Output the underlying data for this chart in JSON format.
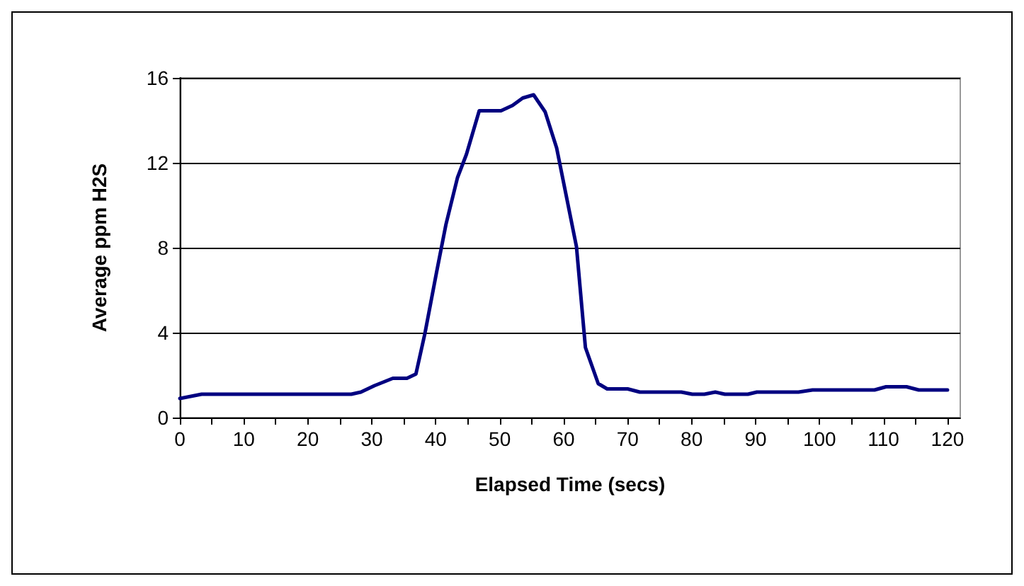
{
  "chart_data": {
    "type": "line",
    "xlabel": "Elapsed Time (secs)",
    "ylabel": "Average ppm H2S",
    "x": [
      0,
      3.4,
      26.8,
      28.3,
      30.4,
      33.3,
      35.5,
      36.9,
      38.3,
      40.1,
      41.6,
      43.4,
      44.8,
      46.8,
      50.2,
      52,
      53.6,
      55.3,
      57.1,
      58.9,
      60.3,
      62,
      63.4,
      65.4,
      66.8,
      70,
      71.9,
      78.4,
      80.1,
      82,
      83.7,
      85.2,
      88.8,
      90.2,
      96.7,
      98.9,
      108.6,
      110.4,
      113.6,
      115.5,
      120
    ],
    "series": [
      {
        "color": "#000080",
        "values": [
          0.9,
          1.1,
          1.1,
          1.2,
          1.5,
          1.85,
          1.85,
          2.05,
          3.95,
          6.8,
          9.1,
          11.3,
          12.4,
          14.45,
          14.45,
          14.7,
          15.05,
          15.2,
          14.4,
          12.7,
          10.6,
          8.05,
          3.3,
          1.6,
          1.35,
          1.35,
          1.2,
          1.2,
          1.1,
          1.1,
          1.2,
          1.1,
          1.1,
          1.2,
          1.2,
          1.3,
          1.3,
          1.45,
          1.45,
          1.3,
          1.3
        ]
      }
    ],
    "xlim": [
      0,
      122
    ],
    "xticks": [
      0,
      {
        "value": 5,
        "label": null
      },
      10,
      {
        "value": 15,
        "label": null
      },
      20,
      {
        "value": 25,
        "label": null
      },
      30,
      {
        "value": 35,
        "label": null
      },
      40,
      {
        "value": 45,
        "label": null
      },
      50,
      {
        "value": 55,
        "label": null
      },
      60,
      {
        "value": 65,
        "label": null
      },
      70,
      {
        "value": 75,
        "label": null
      },
      80,
      {
        "value": 85,
        "label": null
      },
      90,
      {
        "value": 95,
        "label": null
      },
      100,
      {
        "value": 105,
        "label": null
      },
      110,
      {
        "value": 115,
        "label": null
      },
      120
    ],
    "ylim": [
      0,
      16
    ],
    "yticks": [
      0,
      4,
      8,
      12,
      16
    ],
    "grid": "y",
    "marker": "none",
    "line_style": "solid"
  }
}
